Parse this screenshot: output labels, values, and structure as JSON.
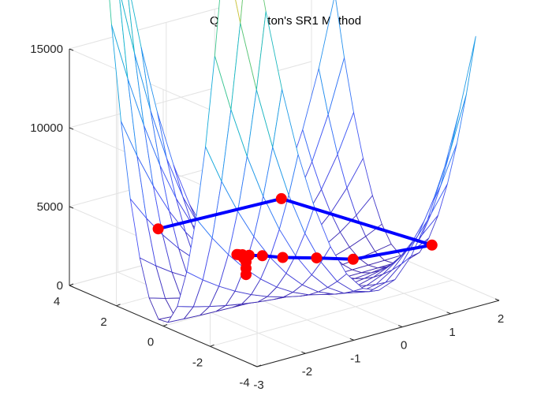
{
  "chart_data": {
    "type": "surface-mesh-3d",
    "title": "Quasi Newton's SR1 Method",
    "axes": {
      "x": {
        "range": [
          -3,
          2
        ],
        "ticks": [
          -3,
          -2,
          -1,
          0,
          1,
          2
        ],
        "tick_labels": [
          "-3",
          "-2",
          "-1",
          "0",
          "1",
          "2"
        ]
      },
      "y": {
        "range": [
          -4,
          4
        ],
        "ticks": [
          -4,
          -2,
          0,
          2,
          4
        ],
        "tick_labels": [
          "-4",
          "-2",
          "0",
          "2",
          "4"
        ]
      },
      "z": {
        "range": [
          0,
          15000
        ],
        "ticks": [
          0,
          5000,
          10000,
          15000
        ],
        "tick_labels": [
          "0",
          "5000",
          "10000",
          "15000"
        ]
      }
    },
    "grid": true,
    "surface": {
      "function": "x^4 + y^4 + 400*x^2*y^2 + 100*y^2 - 200*y + 100",
      "x_range": [
        -3,
        2
      ],
      "y_range": [
        -3,
        3
      ],
      "grid_size": 16,
      "colormap": "parula"
    },
    "path": {
      "line_color": "#0000ff",
      "marker_color": "#ff0000",
      "points": [
        {
          "x": -1.65,
          "y": 3.0,
          "z": 3100
        },
        {
          "x": 0.7,
          "y": 2.6,
          "z": 3300
        },
        {
          "x": 1.8,
          "y": -1.55,
          "z": 2100
        },
        {
          "x": 0.34,
          "y": -1.2,
          "z": 2200
        },
        {
          "x": -0.22,
          "y": -0.8,
          "z": 2500
        },
        {
          "x": -0.75,
          "y": -0.45,
          "z": 2750
        },
        {
          "x": -1.05,
          "y": -0.2,
          "z": 2950
        },
        {
          "x": -1.25,
          "y": -0.05,
          "z": 3050
        },
        {
          "x": -1.34,
          "y": 0.05,
          "z": 3100
        },
        {
          "x": -1.4,
          "y": 0.1,
          "z": 3120
        },
        {
          "x": -1.42,
          "y": 0.12,
          "z": 3130
        },
        {
          "x": -1.1,
          "y": 0.5,
          "z": 2400
        },
        {
          "x": -1.0,
          "y": 0.6,
          "z": 2000
        },
        {
          "x": -1.0,
          "y": 0.6,
          "z": 1600
        },
        {
          "x": -1.0,
          "y": 0.6,
          "z": 1200
        }
      ]
    }
  }
}
